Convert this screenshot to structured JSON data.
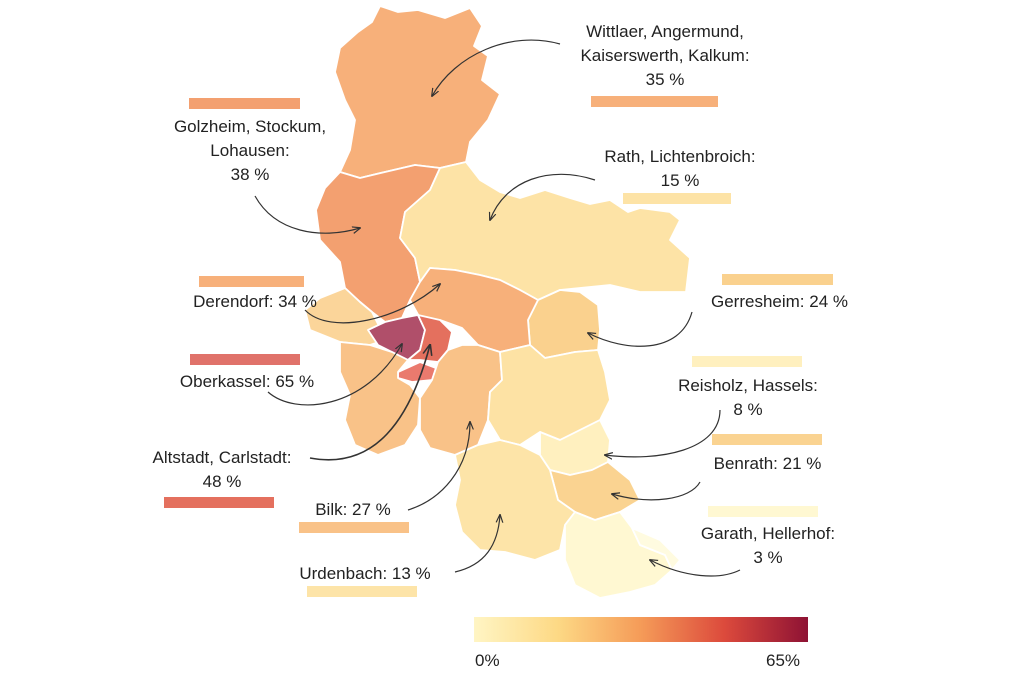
{
  "map": {
    "districts": [
      {
        "name": "Wittlaer, Angermund, Kaiserswerth, Kalkum",
        "percent": "35 %",
        "value": 35,
        "color": "#f7b07a"
      },
      {
        "name": "Golzheim, Stockum, Lohausen",
        "percent": "38 %",
        "value": 38,
        "color": "#f3a070"
      },
      {
        "name": "Derendorf",
        "percent": "34 %",
        "value": 34,
        "color": "#f7b07a"
      },
      {
        "name": "Oberkassel",
        "percent": "65 %",
        "value": 65,
        "color": "#b04f6a"
      },
      {
        "name": "Altstadt, Carlstadt",
        "percent": "48 %",
        "value": 48,
        "color": "#e4705e"
      },
      {
        "name": "Bilk",
        "percent": "27 %",
        "value": 27,
        "color": "#f9c288"
      },
      {
        "name": "Urdenbach",
        "percent": "13 %",
        "value": 13,
        "color": "#fde4a8"
      },
      {
        "name": "Rath, Lichtenbroich",
        "percent": "15 %",
        "value": 15,
        "color": "#fde3a6"
      },
      {
        "name": "Gerresheim",
        "percent": "24 %",
        "value": 24,
        "color": "#fad18e"
      },
      {
        "name": "Reisholz, Hassels",
        "percent": "8 %",
        "value": 8,
        "color": "#fff0bf"
      },
      {
        "name": "Benrath",
        "percent": "21 %",
        "value": 21,
        "color": "#fad391"
      },
      {
        "name": "Garath, Hellerhof",
        "percent": "3 %",
        "value": 3,
        "color": "#fff8d2"
      }
    ]
  },
  "labels": {
    "wittlaer": {
      "line1": "Wittlaer, Angermund,",
      "line2": "Kaiserswerth, Kalkum:",
      "line3": "35 %"
    },
    "golzheim": {
      "line1": "Golzheim, Stockum,",
      "line2": "Lohausen:",
      "line3": "38 %"
    },
    "derendorf": {
      "line1": "Derendorf: 34 %"
    },
    "oberkassel": {
      "line1": "Oberkassel: 65 %"
    },
    "altstadt": {
      "line1": "Altstadt, Carlstadt:",
      "line2": "48 %"
    },
    "bilk": {
      "line1": "Bilk: 27 %"
    },
    "urdenbach": {
      "line1": "Urdenbach: 13 %"
    },
    "rath": {
      "line1": "Rath, Lichtenbroich:",
      "line2": "15 %"
    },
    "gerresheim": {
      "line1": "Gerresheim: 24 %"
    },
    "reisholz": {
      "line1": "Reisholz, Hassels:",
      "line2": "8 %"
    },
    "benrath": {
      "line1": "Benrath: 21 %"
    },
    "garath": {
      "line1": "Garath, Hellerhof:",
      "line2": "3 %"
    }
  },
  "legend": {
    "min_label": "0%",
    "max_label": "65%",
    "min_value": 0,
    "max_value": 65,
    "colors": [
      "#fff5c4",
      "#fdd985",
      "#f59b58",
      "#dc4a3c",
      "#8e1234"
    ]
  }
}
